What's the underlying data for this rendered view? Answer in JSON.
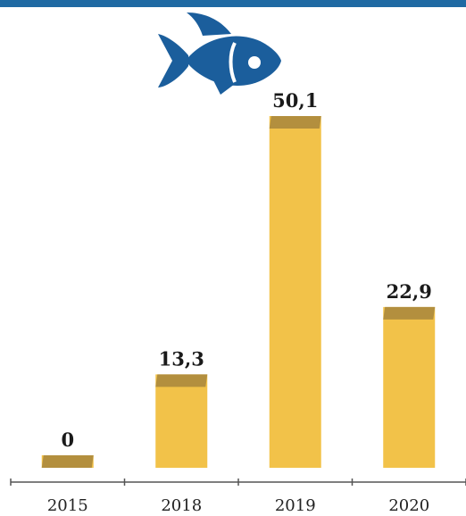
{
  "colors": {
    "top_bar": "#1f6aa3",
    "icon": "#1b5e9c",
    "bar_body": "#f2c249",
    "bar_cap": "#b38f3e",
    "axis": "#555555"
  },
  "icon": {
    "name": "fish-icon"
  },
  "chart_data": {
    "type": "bar",
    "title": "",
    "xlabel": "",
    "ylabel": "",
    "categories": [
      "2015",
      "2018",
      "2019",
      "2020"
    ],
    "values": [
      0,
      13.3,
      50.1,
      22.9
    ],
    "value_labels": [
      "0",
      "13,3",
      "50,1",
      "22,9"
    ],
    "ylim": [
      0,
      50.1
    ],
    "grid": false,
    "legend": "none"
  }
}
